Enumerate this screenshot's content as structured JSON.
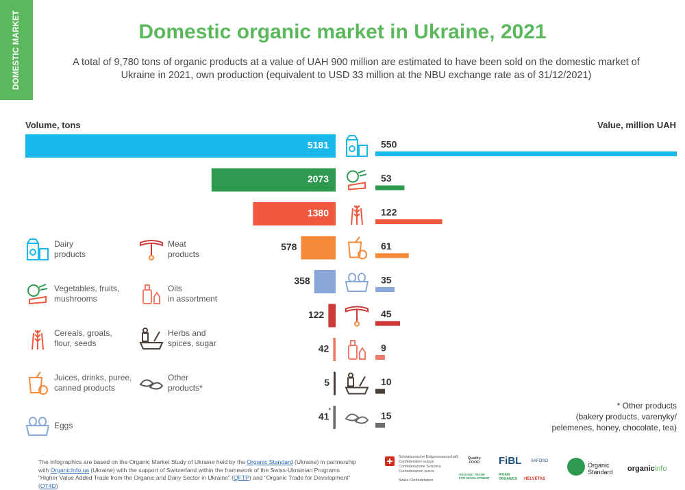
{
  "side_tab": "DOMESTIC MARKET",
  "title": "Domestic organic market in Ukraine, 2021",
  "subtitle": "A total of 9,780 tons of organic products at a value of UAH 900 million are estimated to have been sold on the domestic market of Ukraine in 2021, own production (equivalent to USD 33 million at the NBU exchange rate as of 31/12/2021)",
  "colors": {
    "brand_green": "#5cb85c"
  },
  "chart_data": {
    "type": "bar",
    "left_axis_label": "Volume, tons",
    "right_axis_label": "Value, million UAH",
    "categories": [
      "Dairy products",
      "Vegetables, fruits, mushrooms",
      "Cereals, groats, flour, seeds",
      "Juices, drinks, puree, canned products",
      "Eggs",
      "Meat products",
      "Oils in assortment",
      "Herbs and spices, sugar",
      "Other products*"
    ],
    "series": [
      {
        "name": "Volume, tons",
        "values": [
          5181,
          2073,
          1380,
          578,
          358,
          122,
          42,
          5,
          41
        ]
      },
      {
        "name": "Value, million UAH",
        "values": [
          550,
          53,
          122,
          61,
          35,
          45,
          9,
          10,
          15
        ]
      }
    ],
    "value_labels_left": [
      "5181",
      "2073",
      "1380",
      "578",
      "358",
      "122",
      "42",
      "5",
      "41"
    ],
    "value_labels_right": [
      "550",
      "53",
      "122",
      "61",
      "35",
      "45",
      "9",
      "10",
      "15"
    ],
    "asterisk_row": 8,
    "asterisk": "*",
    "bar_colors": [
      "#1ab7ea",
      "#2e9a50",
      "#f0593e",
      "#f7893b",
      "#8aa7da",
      "#cd3b37",
      "#f07a6a",
      "#4a3e38",
      "#6b6b6b"
    ],
    "icons": [
      "dairy-icon",
      "vegetables-icon",
      "cereals-icon",
      "juices-icon",
      "eggs-icon",
      "meat-icon",
      "oils-icon",
      "herbs-icon",
      "other-icon"
    ]
  },
  "legend": {
    "items": [
      {
        "line1": "Dairy",
        "line2": "products",
        "icon": "dairy-icon"
      },
      {
        "line1": "Vegetables, fruits,",
        "line2": "mushrooms",
        "icon": "vegetables-icon"
      },
      {
        "line1": "Cereals, groats,",
        "line2": "flour, seeds",
        "icon": "cereals-icon"
      },
      {
        "line1": "Juices, drinks, puree,",
        "line2": "canned products",
        "icon": "juices-icon"
      },
      {
        "line1": "Eggs",
        "line2": "",
        "icon": "eggs-icon"
      },
      {
        "line1": "Meat",
        "line2": "products",
        "icon": "meat-icon"
      },
      {
        "line1": "Oils",
        "line2": "in assortment",
        "icon": "oils-icon"
      },
      {
        "line1": "Herbs and",
        "line2": "spices, sugar",
        "icon": "herbs-icon"
      },
      {
        "line1": "Other",
        "line2": "products*",
        "icon": "other-icon"
      }
    ]
  },
  "footnote": {
    "line1": "* Other products",
    "line2": "(bakery products, varenyky/",
    "line3": "pelemenes, honey, chocolate, tea)"
  },
  "source": {
    "t1": "The infographics are based on the Organic Market Study of Ukraine held by the ",
    "l1": "Organic Standard",
    "t2": " (Ukraine) in partnership with ",
    "l2": "OrganicInfo.ua",
    "t3": " (Ukraine) with the support of Switzerland within the framework of the Swiss-Ukrainian Programs “Higher Value Added Trade from the Organic and Dairy Sector in Ukraine” (",
    "l3": "QFTP",
    "t4": ") and “Organic Trade for Development” (",
    "l4": "OT4D",
    "t5": ")"
  },
  "logos": {
    "swiss_1": "Schweizerische Eidgenossenschaft",
    "swiss_2": "Confédération suisse",
    "swiss_3": "Confederazione Svizzera",
    "swiss_4": "Confederaziun svizra",
    "swiss_5": "Swiss Confederation",
    "qf_1": "Quality",
    "qf_2": "FOOD",
    "fibl": "FiBL",
    "safoso": "SAFOSO",
    "ot4d": "ORGANIC TRADE FOR DEVELOPMENT",
    "ifoam": "IFOAM ORGANICS",
    "helvetas": "HELVETAS",
    "os_1": "Organic",
    "os_2": "Standard",
    "oi_1": "organic",
    "oi_2": "info"
  }
}
